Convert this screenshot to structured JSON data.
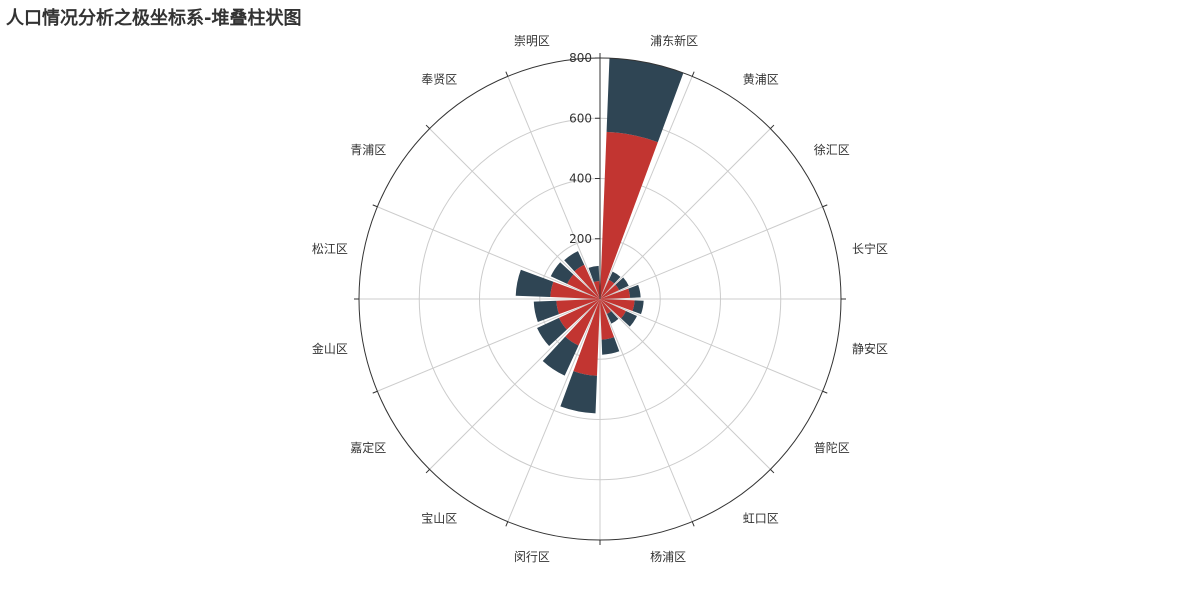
{
  "chart_data": {
    "type": "bar",
    "coordinate_system": "polar",
    "stacked": true,
    "title": "人口情况分析之极坐标系-堆叠柱状图",
    "categories": [
      "浦东新区",
      "黄浦区",
      "徐汇区",
      "长宁区",
      "静安区",
      "普陀区",
      "虹口区",
      "杨浦区",
      "闵行区",
      "宝山区",
      "嘉定区",
      "金山区",
      "松江区",
      "青浦区",
      "奉贤区",
      "崇明区"
    ],
    "radius_ticks": [
      "200",
      "400",
      "600",
      "800"
    ],
    "rmax": 800,
    "series": [
      {
        "color": "#c23531",
        "values": [
          555,
          70,
          70,
          100,
          115,
          95,
          55,
          135,
          255,
          170,
          150,
          145,
          165,
          120,
          125,
          60
        ]
      },
      {
        "color": "#2f4554",
        "values": [
          245,
          30,
          35,
          35,
          30,
          40,
          35,
          50,
          125,
          110,
          80,
          75,
          115,
          60,
          50,
          50
        ]
      }
    ]
  },
  "colors": {
    "axis": "#333333",
    "grid": "#cccccc"
  }
}
